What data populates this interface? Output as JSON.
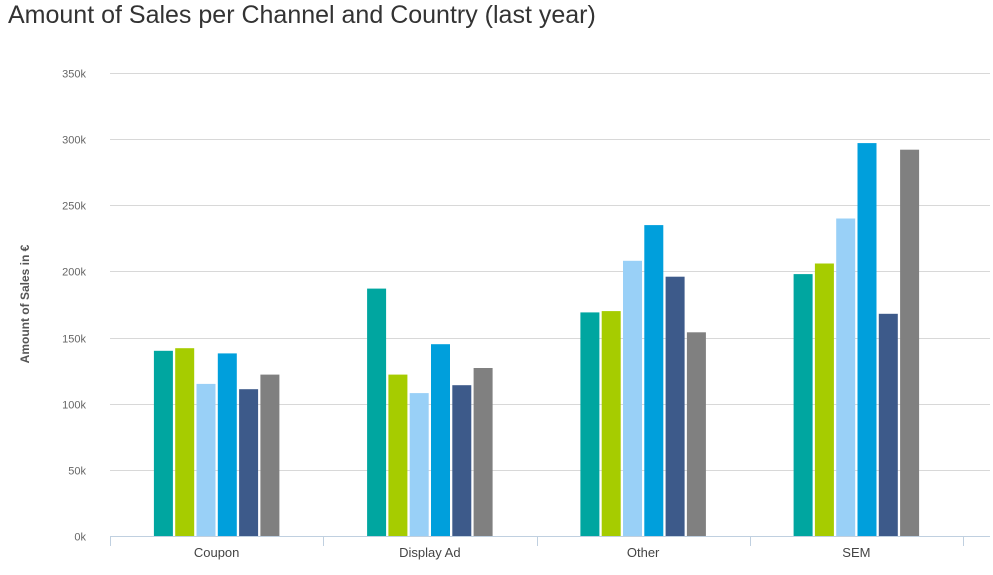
{
  "chart_data": {
    "type": "bar",
    "title": "Amount of Sales per Channel and Country (last year)",
    "xlabel": "",
    "ylabel": "Amount of Sales in €",
    "ylim": [
      0,
      350000
    ],
    "yticks": [
      0,
      50000,
      100000,
      150000,
      200000,
      250000,
      300000,
      350000
    ],
    "ytick_labels": [
      "0k",
      "50k",
      "100k",
      "150k",
      "200k",
      "250k",
      "300k",
      "350k"
    ],
    "categories": [
      "Coupon",
      "Display Ad",
      "Other",
      "SEM"
    ],
    "grid": true,
    "legend": "none",
    "series": [
      {
        "color": "#00a6a0",
        "values": [
          140000,
          187000,
          169000,
          198000
        ]
      },
      {
        "color": "#a6cc00",
        "values": [
          142000,
          122000,
          170000,
          206000
        ]
      },
      {
        "color": "#99d0f7",
        "values": [
          115000,
          108000,
          208000,
          240000
        ]
      },
      {
        "color": "#009fdc",
        "values": [
          138000,
          145000,
          235000,
          297000
        ]
      },
      {
        "color": "#3d5a8a",
        "values": [
          111000,
          114000,
          196000,
          168000
        ]
      },
      {
        "color": "#808080",
        "values": [
          122000,
          127000,
          154000,
          292000
        ]
      }
    ]
  }
}
